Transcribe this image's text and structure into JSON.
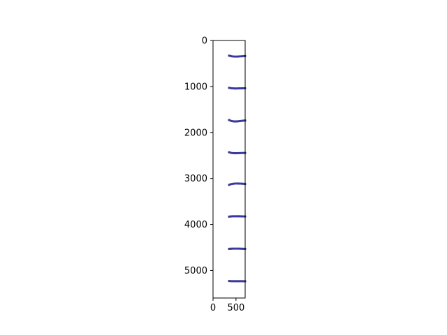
{
  "chart_data": {
    "type": "scatter",
    "title": "",
    "xlabel": "",
    "ylabel": "",
    "xlim": [
      0,
      700
    ],
    "ylim": [
      5600,
      0
    ],
    "y_inverted": true,
    "x_ticks": [
      0,
      500
    ],
    "y_ticks": [
      0,
      1000,
      2000,
      3000,
      4000,
      5000
    ],
    "grid": false,
    "legend": "none",
    "marker_color": "#3a3a9a",
    "series": [
      {
        "x": [
          350,
          380,
          410,
          440,
          470,
          500,
          530,
          560,
          590,
          620,
          650,
          680,
          700,
          350,
          380,
          410,
          440,
          470,
          500,
          530,
          560,
          590,
          620,
          650,
          680,
          700,
          350,
          380,
          410,
          440,
          470,
          500,
          530,
          560,
          590,
          620,
          650,
          680,
          700,
          350,
          380,
          410,
          440,
          470,
          500,
          530,
          560,
          590,
          620,
          650,
          680,
          700,
          350,
          380,
          410,
          440,
          470,
          500,
          530,
          560,
          590,
          620,
          650,
          680,
          700,
          350,
          380,
          410,
          440,
          470,
          500,
          530,
          560,
          590,
          620,
          650,
          680,
          700,
          350,
          380,
          410,
          440,
          470,
          500,
          530,
          560,
          590,
          620,
          650,
          680,
          700,
          350,
          380,
          410,
          440,
          470,
          500,
          530,
          560,
          590,
          620,
          650,
          680,
          700
        ],
        "y": [
          330,
          338,
          344,
          348,
          350,
          350,
          350,
          348,
          346,
          344,
          342,
          340,
          338,
          1030,
          1036,
          1040,
          1042,
          1043,
          1043,
          1043,
          1042,
          1042,
          1041,
          1040,
          1040,
          1039,
          1730,
          1742,
          1752,
          1758,
          1760,
          1760,
          1758,
          1756,
          1752,
          1748,
          1745,
          1742,
          1740,
          2430,
          2440,
          2446,
          2450,
          2451,
          2451,
          2450,
          2449,
          2448,
          2447,
          2446,
          2445,
          2445,
          3140,
          3128,
          3120,
          3115,
          3112,
          3110,
          3110,
          3111,
          3112,
          3113,
          3115,
          3117,
          3120,
          3830,
          3826,
          3824,
          3822,
          3822,
          3822,
          3822,
          3822,
          3823,
          3824,
          3825,
          3826,
          3826,
          4530,
          4528,
          4526,
          4525,
          4525,
          4525,
          4525,
          4525,
          4526,
          4527,
          4528,
          4529,
          4530,
          5230,
          5232,
          5233,
          5234,
          5234,
          5234,
          5234,
          5234,
          5234,
          5234,
          5234,
          5235,
          5235
        ]
      }
    ]
  }
}
